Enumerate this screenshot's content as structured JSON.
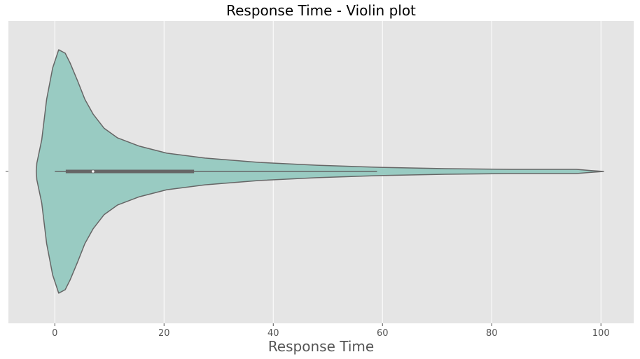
{
  "chart_data": {
    "type": "violin",
    "title": "Response Time - Violin plot",
    "xlabel": "Response Time",
    "ylabel": "",
    "xlim": [
      -8.5,
      106
    ],
    "xticks": [
      0,
      20,
      40,
      60,
      80,
      100
    ],
    "xtick_labels": [
      "0",
      "20",
      "40",
      "60",
      "80",
      "100"
    ],
    "grid": true,
    "colors": {
      "background": "#e5e5e5",
      "grid": "#ffffff",
      "violin_fill": "#99cbc2",
      "violin_edge": "#666666",
      "box": "#666666",
      "median": "#ffffff"
    },
    "summary": {
      "min": 0,
      "q1": 2,
      "median": 7,
      "q3": 25.5,
      "whisker_high": 59
    },
    "density": [
      {
        "x": -3.4,
        "w": 0.0
      },
      {
        "x": -3.3,
        "w": 0.068
      },
      {
        "x": -2.4,
        "w": 0.258
      },
      {
        "x": -1.5,
        "w": 0.589
      },
      {
        "x": -0.4,
        "w": 0.845
      },
      {
        "x": 0.7,
        "w": 0.994
      },
      {
        "x": 1.9,
        "w": 0.966
      },
      {
        "x": 2.8,
        "w": 0.886
      },
      {
        "x": 4.2,
        "w": 0.737
      },
      {
        "x": 5.5,
        "w": 0.589
      },
      {
        "x": 7.0,
        "w": 0.469
      },
      {
        "x": 9.0,
        "w": 0.354
      },
      {
        "x": 11.5,
        "w": 0.274
      },
      {
        "x": 15.5,
        "w": 0.206
      },
      {
        "x": 20.5,
        "w": 0.149
      },
      {
        "x": 27.5,
        "w": 0.109
      },
      {
        "x": 37.5,
        "w": 0.074
      },
      {
        "x": 48.0,
        "w": 0.051
      },
      {
        "x": 59.5,
        "w": 0.034
      },
      {
        "x": 71.5,
        "w": 0.023
      },
      {
        "x": 83.5,
        "w": 0.017
      },
      {
        "x": 95.5,
        "w": 0.017
      },
      {
        "x": 98.0,
        "w": 0.008
      },
      {
        "x": 100.5,
        "w": 0.0
      }
    ]
  }
}
